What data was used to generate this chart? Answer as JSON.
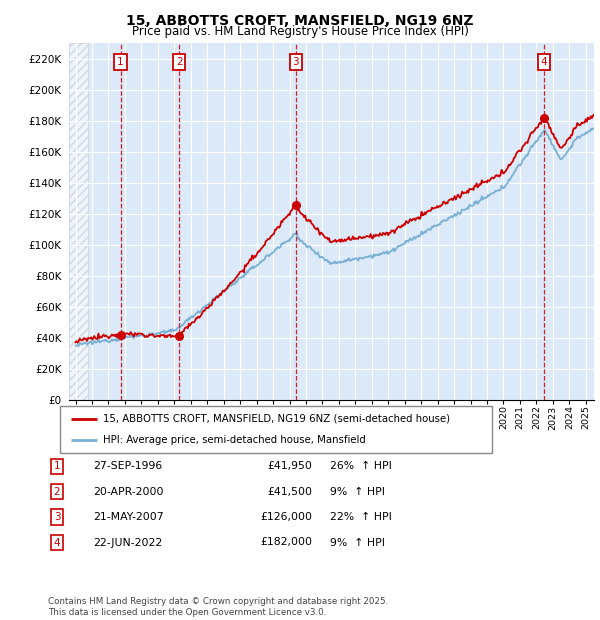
{
  "title1": "15, ABBOTTS CROFT, MANSFIELD, NG19 6NZ",
  "title2": "Price paid vs. HM Land Registry's House Price Index (HPI)",
  "ylim": [
    0,
    230000
  ],
  "yticks": [
    0,
    20000,
    40000,
    60000,
    80000,
    100000,
    120000,
    140000,
    160000,
    180000,
    200000,
    220000
  ],
  "ytick_labels": [
    "£0",
    "£20K",
    "£40K",
    "£60K",
    "£80K",
    "£100K",
    "£120K",
    "£140K",
    "£160K",
    "£180K",
    "£200K",
    "£220K"
  ],
  "xlim_start": 1993.6,
  "xlim_end": 2025.5,
  "background_color": "#dce9f8",
  "hatched_region_end": 1994.75,
  "transactions": [
    {
      "num": 1,
      "date_str": "27-SEP-1996",
      "year": 1996.73,
      "price": 41950,
      "hpi_pct": "26%",
      "arrow": "↑"
    },
    {
      "num": 2,
      "date_str": "20-APR-2000",
      "year": 2000.3,
      "price": 41500,
      "hpi_pct": "9%",
      "arrow": "↑"
    },
    {
      "num": 3,
      "date_str": "21-MAY-2007",
      "year": 2007.38,
      "price": 126000,
      "hpi_pct": "22%",
      "arrow": "↑"
    },
    {
      "num": 4,
      "date_str": "22-JUN-2022",
      "year": 2022.47,
      "price": 182000,
      "hpi_pct": "9%",
      "arrow": "↑"
    }
  ],
  "legend_line1": "15, ABBOTTS CROFT, MANSFIELD, NG19 6NZ (semi-detached house)",
  "legend_line2": "HPI: Average price, semi-detached house, Mansfield",
  "footer": "Contains HM Land Registry data © Crown copyright and database right 2025.\nThis data is licensed under the Open Government Licence v3.0.",
  "red_color": "#cc0000",
  "blue_color": "#7ab0d4",
  "grid_color": "#ffffff"
}
